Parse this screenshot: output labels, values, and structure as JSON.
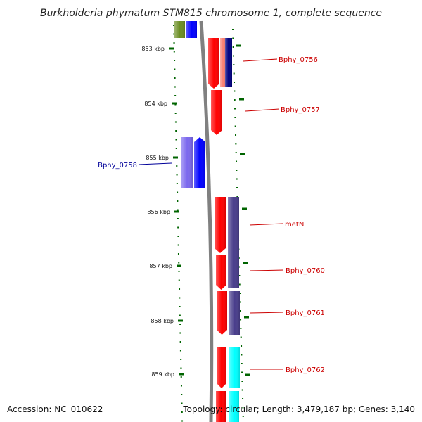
{
  "title": "Burkholderia phymatum STM815 chromosome 1, complete sequence",
  "footer": {
    "accession": "Accession: NC_010622",
    "summary": "Topology: circular; Length: 3,479,187 bp; Genes: 3,140"
  },
  "ticks": [
    "853 kbp",
    "854 kbp",
    "855 kbp",
    "856 kbp",
    "857 kbp",
    "858 kbp",
    "859 kbp"
  ],
  "genes": [
    {
      "label": "Bphy_0756",
      "color": "#cc0000"
    },
    {
      "label": "Bphy_0757",
      "color": "#cc0000"
    },
    {
      "label": "Bphy_0758",
      "color": "#000099"
    },
    {
      "label": "metN",
      "color": "#cc0000"
    },
    {
      "label": "Bphy_0760",
      "color": "#cc0000"
    },
    {
      "label": "Bphy_0761",
      "color": "#cc0000"
    },
    {
      "label": "Bphy_0762",
      "color": "#cc0000"
    }
  ],
  "colors": {
    "backbone": "#808080",
    "tick": "#006400",
    "red": "#ff0000",
    "blue": "#0000ff",
    "slate": "#483d8b",
    "olive": "#6b8e23",
    "cyan": "#00ffff",
    "salmon": "#fa8072",
    "navy": "#000080",
    "lavender": "#7b68ee"
  }
}
